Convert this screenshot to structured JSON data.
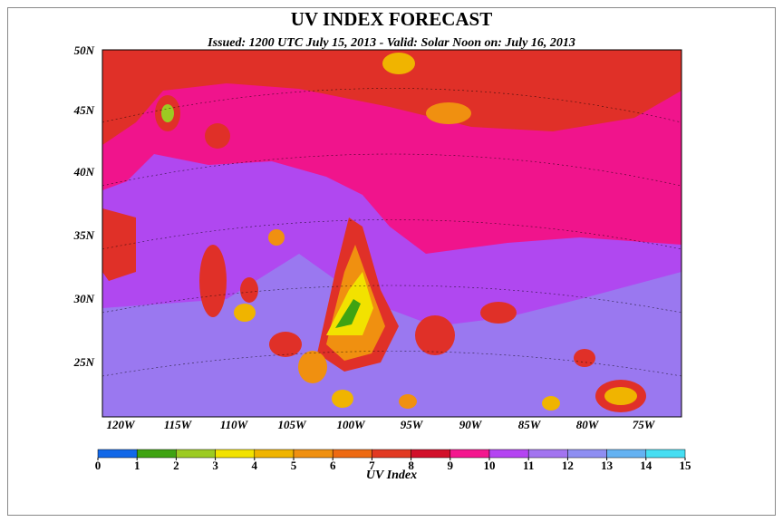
{
  "title": "UV INDEX FORECAST",
  "subtitle": "Issued: 1200 UTC July 15, 2013  -  Valid: Solar Noon on: July 16, 2013",
  "map": {
    "lat_labels": [
      "50N",
      "45N",
      "40N",
      "35N",
      "30N",
      "25N"
    ],
    "lon_labels": [
      "120W",
      "115W",
      "110W",
      "105W",
      "100W",
      "95W",
      "90W",
      "85W",
      "80W",
      "75W"
    ]
  },
  "colorbar": {
    "label": "UV Index",
    "ticks": [
      0,
      1,
      2,
      3,
      4,
      5,
      6,
      7,
      8,
      9,
      10,
      11,
      12,
      13,
      14,
      15
    ],
    "colors": [
      "#1268e8",
      "#3fa312",
      "#9ccb22",
      "#f2e200",
      "#f0b400",
      "#f09010",
      "#ee6a12",
      "#e23a22",
      "#d2102a",
      "#f4168e",
      "#b444f2",
      "#a274f0",
      "#8e8ef2",
      "#64b2f2",
      "#46def2"
    ]
  }
}
